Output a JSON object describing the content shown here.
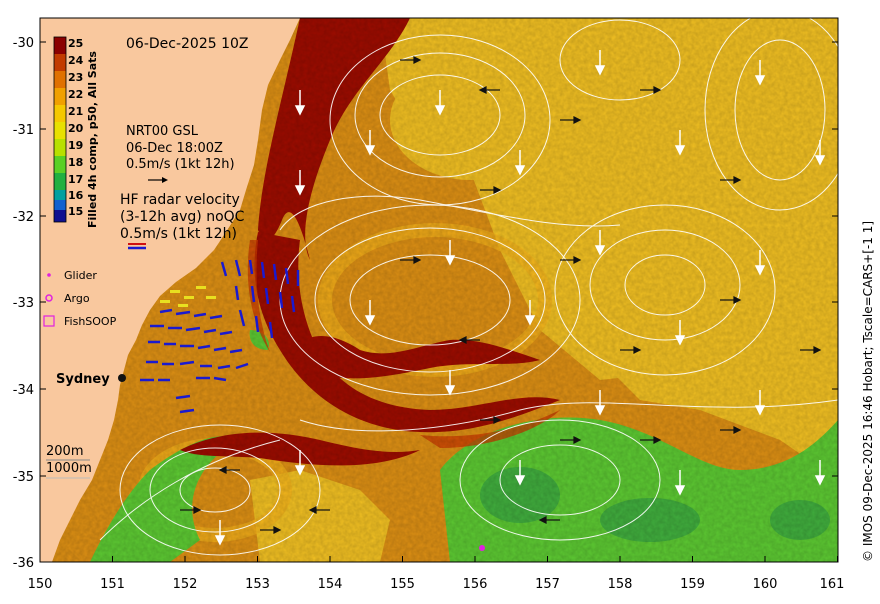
{
  "map": {
    "date_title": "06-Dec-2025 10Z",
    "colorbar": {
      "title": "Filled 4h comp, p50, All Sats",
      "ticks": [
        "25",
        "24",
        "23",
        "22",
        "21",
        "20",
        "19",
        "18",
        "17",
        "16",
        "15"
      ],
      "colors": [
        "#8b0000",
        "#c23b00",
        "#e07000",
        "#f0a000",
        "#f5c800",
        "#e8e000",
        "#b8e000",
        "#5ad025",
        "#20b040",
        "#00a0a0",
        "#1060d0",
        "#101090"
      ]
    },
    "glider_text": {
      "line1": "NRT00 GSL",
      "line2": "06-Dec 18:00Z",
      "line3": "0.5m/s (1kt 12h)"
    },
    "hf_radar": {
      "line1": "HF radar velocity",
      "line2": "(3-12h avg) noQC",
      "line3": "0.5m/s (1kt 12h)"
    },
    "legend": [
      {
        "label": "Glider",
        "marker": "dot",
        "color": "#e020e0"
      },
      {
        "label": "Argo",
        "marker": "circle",
        "color": "#e020e0"
      },
      {
        "label": "FishSOOP",
        "marker": "square",
        "color": "#e020e0"
      }
    ],
    "city": "Sydney",
    "depth_labels": [
      "200m",
      "1000m"
    ],
    "x_ticks": [
      "150",
      "151",
      "152",
      "153",
      "154",
      "155",
      "156",
      "157",
      "158",
      "159",
      "160",
      "161"
    ],
    "y_ticks": [
      "-30",
      "-31",
      "-32",
      "-33",
      "-34",
      "-35",
      "-36"
    ],
    "credit": "© IMOS 09-Dec-2025 16:46 Hobart; Tscale=CARS+[-1 1]",
    "colors": {
      "land": "#f9c89e",
      "warm_core": "#9b0a00",
      "orange": "#d88a10",
      "yellow": "#f0c020",
      "green": "#58c830",
      "contour": "#ffffff",
      "radar": "#1a1ad0"
    }
  }
}
